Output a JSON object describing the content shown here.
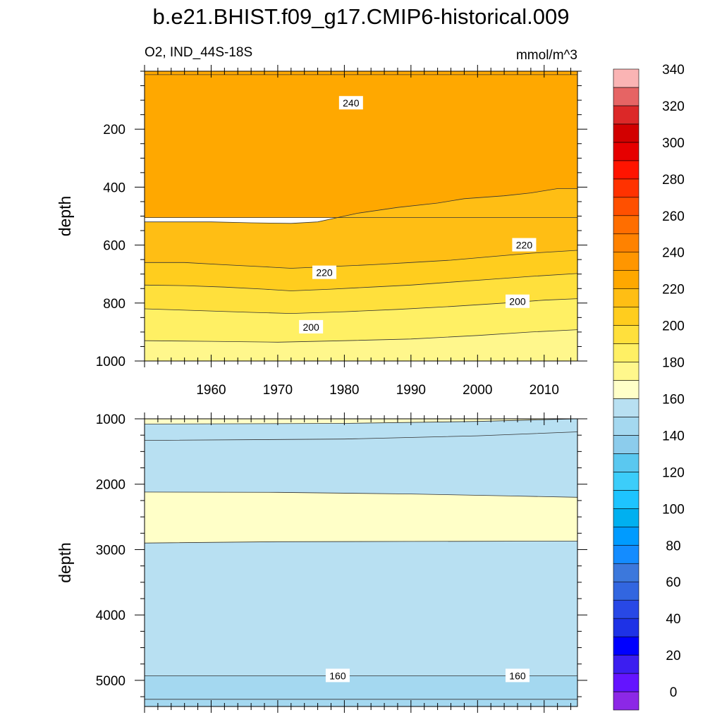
{
  "header": {
    "title": "b.e21.BHIST.f09_g17.CMIP6-historical.009",
    "variable_region": "O2, IND_44S-18S",
    "units": "mmol/m^3"
  },
  "chart_data": [
    {
      "type": "heatmap",
      "panel": "upper",
      "ylabel": "depth",
      "xlabel": "",
      "xlim": [
        1950,
        2015
      ],
      "ylim": [
        1000,
        0
      ],
      "y_reversed": true,
      "x_ticks": [
        1960,
        1970,
        1980,
        1990,
        2000,
        2010
      ],
      "y_ticks": [
        200,
        400,
        600,
        800,
        1000
      ],
      "contour_interval": 10,
      "bands": [
        {
          "level": 240,
          "color": "#FF9600",
          "boundary": [
            [
              1950,
              12
            ],
            [
              2015,
              12
            ],
            [
              2015,
              0
            ],
            [
              1950,
              0
            ]
          ]
        },
        {
          "level": 230,
          "color": "#FFA800",
          "boundary": [
            [
              1950,
              505
            ],
            [
              2015,
              505
            ],
            [
              2015,
              0
            ],
            [
              1950,
              0
            ]
          ]
        },
        {
          "level": 220,
          "color": "#FFBE14",
          "boundary": [
            [
              1950,
              520
            ],
            [
              1956,
              520
            ],
            [
              1960,
              520
            ],
            [
              1966,
              523
            ],
            [
              1972,
              525
            ],
            [
              1976,
              520
            ],
            [
              1982,
              490
            ],
            [
              1988,
              470
            ],
            [
              1994,
              455
            ],
            [
              1998,
              440
            ],
            [
              2004,
              430
            ],
            [
              2008,
              420
            ],
            [
              2012,
              405
            ],
            [
              2015,
              405
            ],
            [
              2015,
              1000
            ],
            [
              1950,
              1000
            ]
          ]
        },
        {
          "level": 210,
          "color": "#FFCD1E",
          "boundary": [
            [
              1950,
              660
            ],
            [
              1956,
              660
            ],
            [
              1962,
              668
            ],
            [
              1968,
              675
            ],
            [
              1972,
              680
            ],
            [
              1978,
              674
            ],
            [
              1984,
              668
            ],
            [
              1990,
              660
            ],
            [
              1996,
              652
            ],
            [
              2002,
              640
            ],
            [
              2008,
              628
            ],
            [
              2015,
              618
            ],
            [
              2015,
              1000
            ],
            [
              1950,
              1000
            ]
          ]
        },
        {
          "level": 200,
          "color": "#FFE03C",
          "boundary": [
            [
              1950,
              738
            ],
            [
              1956,
              740
            ],
            [
              1962,
              745
            ],
            [
              1968,
              752
            ],
            [
              1972,
              758
            ],
            [
              1978,
              752
            ],
            [
              1984,
              745
            ],
            [
              1990,
              738
            ],
            [
              1996,
              728
            ],
            [
              2002,
              718
            ],
            [
              2008,
              708
            ],
            [
              2015,
              698
            ],
            [
              2015,
              1000
            ],
            [
              1950,
              1000
            ]
          ]
        },
        {
          "level": 190,
          "color": "#FFF064",
          "boundary": [
            [
              1950,
              820
            ],
            [
              1958,
              826
            ],
            [
              1966,
              832
            ],
            [
              1972,
              836
            ],
            [
              1980,
              830
            ],
            [
              1988,
              822
            ],
            [
              1996,
              812
            ],
            [
              2004,
              800
            ],
            [
              2010,
              790
            ],
            [
              2015,
              785
            ],
            [
              2015,
              1000
            ],
            [
              1950,
              1000
            ]
          ]
        },
        {
          "level": 180,
          "color": "#FFF78C",
          "boundary": [
            [
              1950,
              930
            ],
            [
              1960,
              932
            ],
            [
              1970,
              935
            ],
            [
              1980,
              930
            ],
            [
              1990,
              924
            ],
            [
              2000,
              912
            ],
            [
              2008,
              900
            ],
            [
              2015,
              892
            ],
            [
              2015,
              1000
            ],
            [
              1950,
              1000
            ]
          ]
        }
      ],
      "contour_labels": [
        {
          "text": "240",
          "x": 1981,
          "y": 110
        },
        {
          "text": "220",
          "x": 1977,
          "y": 695
        },
        {
          "text": "220",
          "x": 2007,
          "y": 600
        },
        {
          "text": "200",
          "x": 1975,
          "y": 883
        },
        {
          "text": "200",
          "x": 2006,
          "y": 795
        }
      ]
    },
    {
      "type": "heatmap",
      "panel": "lower",
      "ylabel": "depth",
      "xlabel": "",
      "xlim": [
        1950,
        2015
      ],
      "ylim": [
        5400,
        1000
      ],
      "y_reversed": true,
      "x_ticks": [
        1960,
        1970,
        1980,
        1990,
        2000,
        2010
      ],
      "y_ticks": [
        1000,
        2000,
        3000,
        4000,
        5000
      ],
      "contour_interval": 10,
      "bands": [
        {
          "level": 180,
          "color": "#FFFFC8",
          "boundary": [
            [
              1950,
              1000
            ],
            [
              2015,
              1000
            ],
            [
              2015,
              5400
            ],
            [
              1950,
              5400
            ]
          ]
        },
        {
          "level": 170,
          "color": "#B8E0F2",
          "boundary": [
            [
              1950,
              1080
            ],
            [
              1980,
              1070
            ],
            [
              2000,
              1040
            ],
            [
              2015,
              1000
            ],
            [
              2015,
              5400
            ],
            [
              1950,
              5400
            ]
          ]
        },
        {
          "level": 170,
          "color": "#FFFFC8",
          "boundary": [
            [
              1950,
              2120
            ],
            [
              1970,
              2125
            ],
            [
              1990,
              2150
            ],
            [
              2005,
              2180
            ],
            [
              2015,
              2200
            ],
            [
              2015,
              2870
            ],
            [
              1990,
              2875
            ],
            [
              1970,
              2880
            ],
            [
              1950,
              2900
            ]
          ]
        },
        {
          "level": 160,
          "color": "#A4D8F0",
          "boundary": [
            [
              1950,
              4930
            ],
            [
              2015,
              4930
            ],
            [
              2015,
              5400
            ],
            [
              1950,
              5400
            ]
          ]
        }
      ],
      "contour_lines": [
        [
          [
            1950,
            1080
          ],
          [
            1980,
            1070
          ],
          [
            2000,
            1040
          ],
          [
            2015,
            1000
          ]
        ],
        [
          [
            1950,
            1330
          ],
          [
            1980,
            1310
          ],
          [
            2000,
            1260
          ],
          [
            2015,
            1200
          ]
        ],
        [
          [
            1950,
            2120
          ],
          [
            1970,
            2125
          ],
          [
            1990,
            2150
          ],
          [
            2005,
            2180
          ],
          [
            2015,
            2200
          ]
        ],
        [
          [
            1950,
            2900
          ],
          [
            1970,
            2880
          ],
          [
            1990,
            2875
          ],
          [
            2015,
            2870
          ]
        ],
        [
          [
            1950,
            4930
          ],
          [
            2015,
            4930
          ]
        ],
        [
          [
            1950,
            5290
          ],
          [
            2015,
            5290
          ]
        ]
      ],
      "contour_labels": [
        {
          "text": "160",
          "x": 1979,
          "y": 4930
        },
        {
          "text": "160",
          "x": 2006,
          "y": 4930
        }
      ]
    }
  ],
  "colorbar": {
    "tick_labels": [
      "0",
      "20",
      "40",
      "60",
      "80",
      "100",
      "120",
      "140",
      "160",
      "180",
      "200",
      "220",
      "240",
      "260",
      "280",
      "300",
      "320",
      "340"
    ],
    "colors": [
      "#8C28E6",
      "#6414FF",
      "#3C1EF0",
      "#0000FF",
      "#1E32E6",
      "#2848E6",
      "#3266E0",
      "#3C78DC",
      "#148CFF",
      "#009BFF",
      "#00B0F0",
      "#1EC4FF",
      "#3CCDFA",
      "#5AC8F0",
      "#8CCCEC",
      "#A4D8F0",
      "#B8E0F2",
      "#FFFFC8",
      "#FFF78C",
      "#FFF064",
      "#FFE03C",
      "#FFCD1E",
      "#FFBE14",
      "#FFA800",
      "#FF9600",
      "#FF8200",
      "#FF6E00",
      "#FF5000",
      "#FF3200",
      "#FF1400",
      "#E60000",
      "#D20000",
      "#DC2828",
      "#E66464",
      "#FAB4B4"
    ]
  }
}
